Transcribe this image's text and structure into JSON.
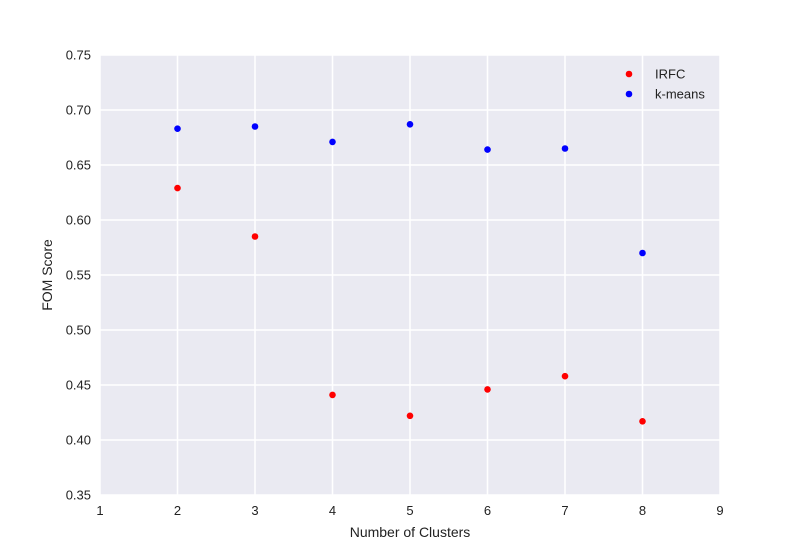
{
  "chart_data": {
    "type": "scatter",
    "xlabel": "Number of Clusters",
    "ylabel": "FOM Score",
    "xlim": [
      1,
      9
    ],
    "ylim": [
      0.35,
      0.75
    ],
    "xticks": [
      "1",
      "2",
      "3",
      "4",
      "5",
      "6",
      "7",
      "8",
      "9"
    ],
    "yticks": [
      "0.35",
      "0.40",
      "0.45",
      "0.50",
      "0.55",
      "0.60",
      "0.65",
      "0.70",
      "0.75"
    ],
    "grid": true,
    "background": "#eaeaf2",
    "legend_position": "top-right",
    "series": [
      {
        "name": "IRFC",
        "color": "#ff0000",
        "x": [
          2,
          3,
          4,
          5,
          6,
          7,
          8
        ],
        "y": [
          0.629,
          0.585,
          0.441,
          0.422,
          0.446,
          0.458,
          0.417
        ]
      },
      {
        "name": "k-means",
        "color": "#0000ff",
        "x": [
          2,
          3,
          4,
          5,
          6,
          7,
          8
        ],
        "y": [
          0.683,
          0.685,
          0.671,
          0.687,
          0.664,
          0.665,
          0.57
        ]
      }
    ]
  }
}
